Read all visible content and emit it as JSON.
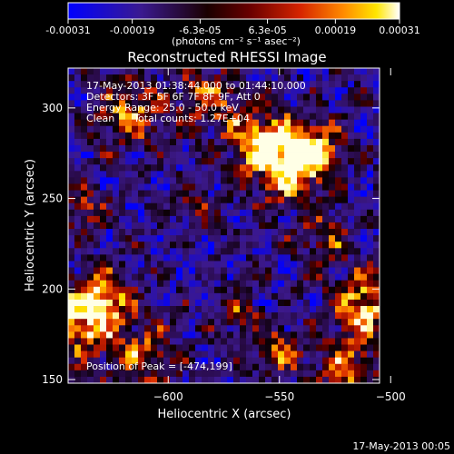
{
  "chart_data": {
    "type": "heatmap",
    "title": "Reconstructed RHESSI Image",
    "colorbar": {
      "ticks": [
        "-0.00031",
        "-0.00019",
        "-6.3e-05",
        "6.3e-05",
        "0.00019",
        "0.00031"
      ],
      "units": "(photons cm⁻² s⁻¹ asec⁻²)",
      "range": [
        -0.00031,
        0.00031
      ],
      "colormap": [
        "#0000ff",
        "#3a1a90",
        "#000000",
        "#6a0000",
        "#d62400",
        "#ff8a00",
        "#ffe600",
        "#ffffff"
      ]
    },
    "xlabel": "Heliocentric X (arcsec)",
    "ylabel": "Heliocentric Y (arcsec)",
    "xlim": [
      -645,
      -505
    ],
    "ylim": [
      148,
      322
    ],
    "xticks": [
      -600,
      -550,
      -500
    ],
    "yticks": [
      150,
      200,
      250,
      300
    ],
    "annotations": [
      "17-May-2013 01:38:44.000 to 01:44:10.000",
      "Detectors: 3F 5F 6F 7F 8F 9F, Att 0",
      "Energy Range: 25.0 - 50.0 keV",
      "Clean      Total counts: 1.27E+04"
    ],
    "peak_text": "Position of Peak = [-474,199]",
    "peak": [
      -474,
      199
    ]
  },
  "footer": {
    "timestamp": "17-May-2013 00:05"
  }
}
